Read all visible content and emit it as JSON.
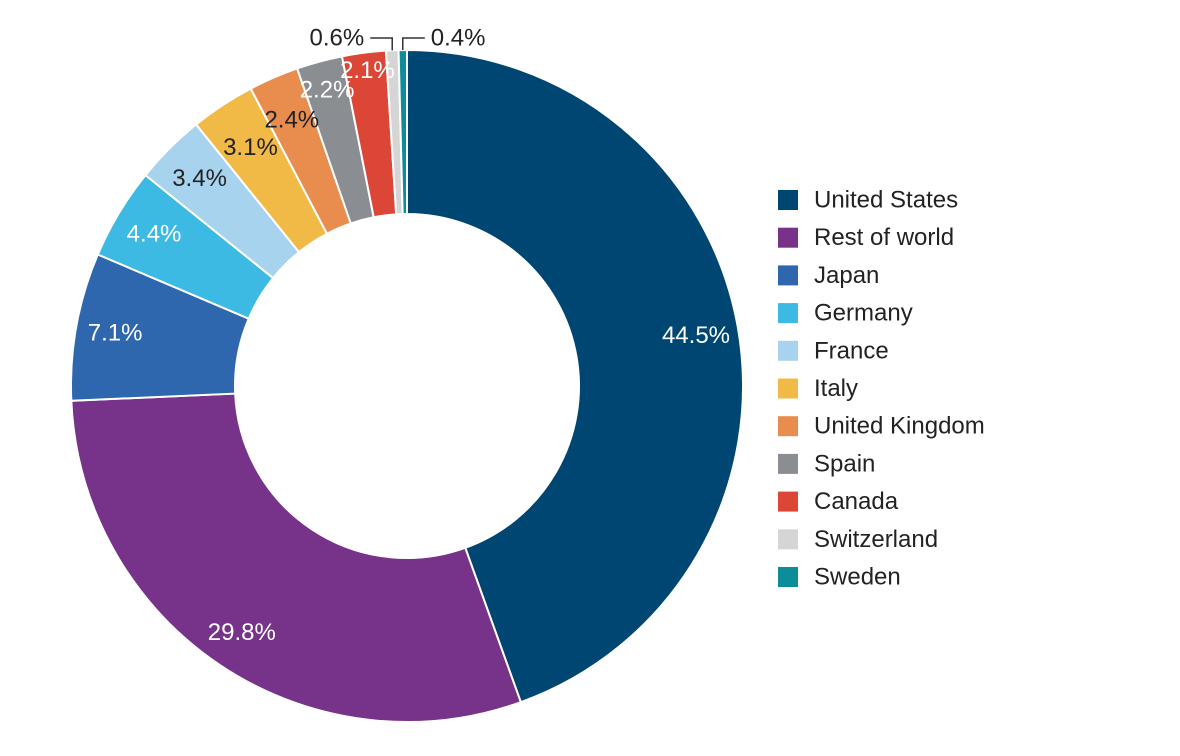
{
  "chart_data": {
    "type": "pie",
    "subtype": "donut",
    "title": "",
    "legend_position": "right",
    "slices": [
      {
        "label": "United States",
        "value": 44.5,
        "value_text": "44.5%",
        "color": "#004673",
        "label_color": "#ffffff"
      },
      {
        "label": "Rest of world",
        "value": 29.8,
        "value_text": "29.8%",
        "color": "#77328a",
        "label_color": "#ffffff"
      },
      {
        "label": "Japan",
        "value": 7.1,
        "value_text": "7.1%",
        "color": "#2e67ad",
        "label_color": "#ffffff"
      },
      {
        "label": "Germany",
        "value": 4.4,
        "value_text": "4.4%",
        "color": "#3dbae3",
        "label_color": "#ffffff"
      },
      {
        "label": "France",
        "value": 3.4,
        "value_text": "3.4%",
        "color": "#a7d3ef",
        "label_color": "#222222"
      },
      {
        "label": "Italy",
        "value": 3.1,
        "value_text": "3.1%",
        "color": "#f1b945",
        "label_color": "#222222"
      },
      {
        "label": "United Kingdom",
        "value": 2.4,
        "value_text": "2.4%",
        "color": "#e88d4d",
        "label_color": "#222222"
      },
      {
        "label": "Spain",
        "value": 2.2,
        "value_text": "2.2%",
        "color": "#8a8d91",
        "label_color": "#ffffff"
      },
      {
        "label": "Canada",
        "value": 2.1,
        "value_text": "2.1%",
        "color": "#dc4637",
        "label_color": "#ffffff"
      },
      {
        "label": "Switzerland",
        "value": 0.6,
        "value_text": "0.6%",
        "color": "#d5d5d5",
        "label_color": "#222222"
      },
      {
        "label": "Sweden",
        "value": 0.4,
        "value_text": "0.4%",
        "color": "#0d8c99",
        "label_color": "#222222"
      }
    ]
  }
}
